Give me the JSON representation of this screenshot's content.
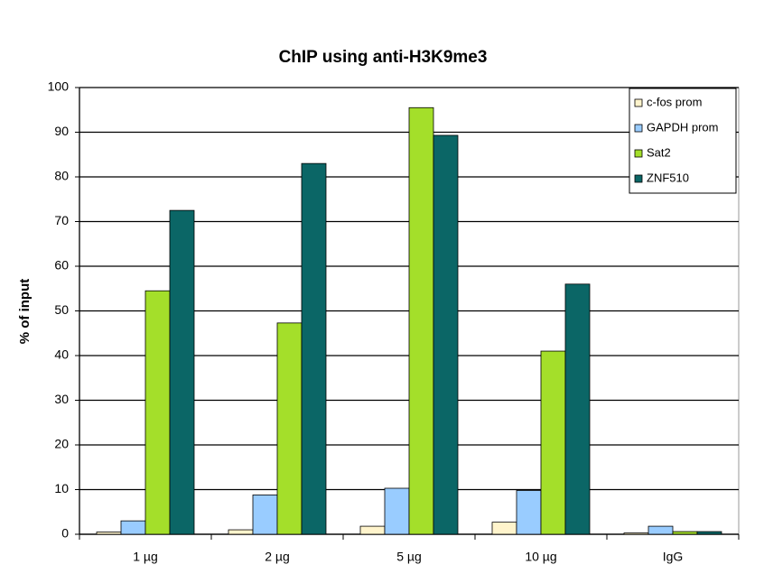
{
  "chart_data": {
    "type": "bar",
    "title": "ChIP using anti-H3K9me3",
    "y_label": "% of input",
    "categories": [
      "1 µg",
      "2 µg",
      "5 µg",
      "10 µg",
      "IgG"
    ],
    "series": [
      {
        "name": "c-fos prom",
        "color": "#fff4cc",
        "values": [
          0.5,
          1,
          1.8,
          2.7,
          0.3
        ]
      },
      {
        "name": "GAPDH prom",
        "color": "#99ccff",
        "values": [
          3,
          8.8,
          10.3,
          9.8,
          1.8
        ]
      },
      {
        "name": "Sat2",
        "color": "#a4df2a",
        "values": [
          54.5,
          47.3,
          95.5,
          41,
          0.6
        ]
      },
      {
        "name": "ZNF510",
        "color": "#0b6666",
        "values": [
          72.5,
          83,
          89.3,
          56,
          0.6
        ]
      }
    ],
    "ylim": [
      0,
      100
    ],
    "yticks": [
      0,
      10,
      20,
      30,
      40,
      50,
      60,
      70,
      80,
      90,
      100
    ],
    "grid": true,
    "legend": "upper right"
  }
}
